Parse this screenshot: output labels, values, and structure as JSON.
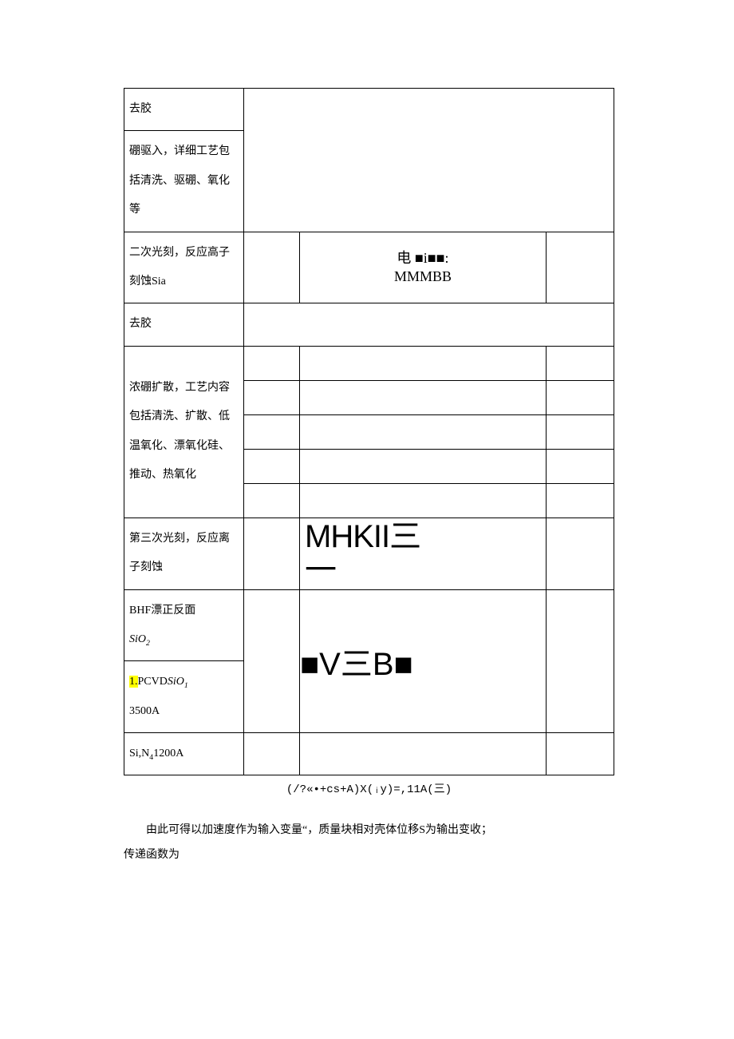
{
  "table": {
    "rows": [
      {
        "left": "去胶"
      },
      {
        "left": "硼驱入，详细工艺包括清洗、驱硼、氧化等"
      },
      {
        "left": "二次光刻，反应高子刻蚀Sia",
        "center_html": "电 <span class='black-sq'>■</span>i<span class='black-sq'>■■</span>:<br>MMMBB",
        "center_class": "embedded-text1",
        "has_right": true
      },
      {
        "left": "去胶"
      },
      {
        "left": "浓硼扩散，工艺内容包括清洗、扩散、低温氧化、漂氧化硅、推动、热氧化",
        "subrows": 5
      },
      {
        "left": "第三次光刻，反应离子刻蚀",
        "center_html": "MHKII<span class='san'>三</span><br><span class='san' style='letter-spacing:-6px;'>一</span>",
        "center_class": "embedded-text2",
        "has_right": true
      },
      {
        "left_html": "BHF漂正反面<br><span class='italic'>SiO<span class='sub'>2</span></span>",
        "center_html": "<span class='black-sq'>■</span>V<span class='san'>三</span>B<span class='black-sq'>■</span>",
        "center_class": "embedded-text3",
        "center_rowspan_down": true
      },
      {
        "left_html": "<span class='highlight'>1.</span>PCVD<span class='italic'>SiO<span class='sub'>1</span></span><br>3500A"
      },
      {
        "left_html": "Si,N<span class='sub'>4</span>1200A",
        "subrows": 1,
        "open_bottom": true
      }
    ]
  },
  "formula": "(/?«•+cs+A)X(ᵢy)=,11A(三)",
  "paragraph1": "由此可得以加速度作为输入变量“，质量块相对壳体位移S为输出变收；",
  "paragraph2": "传递函数为"
}
